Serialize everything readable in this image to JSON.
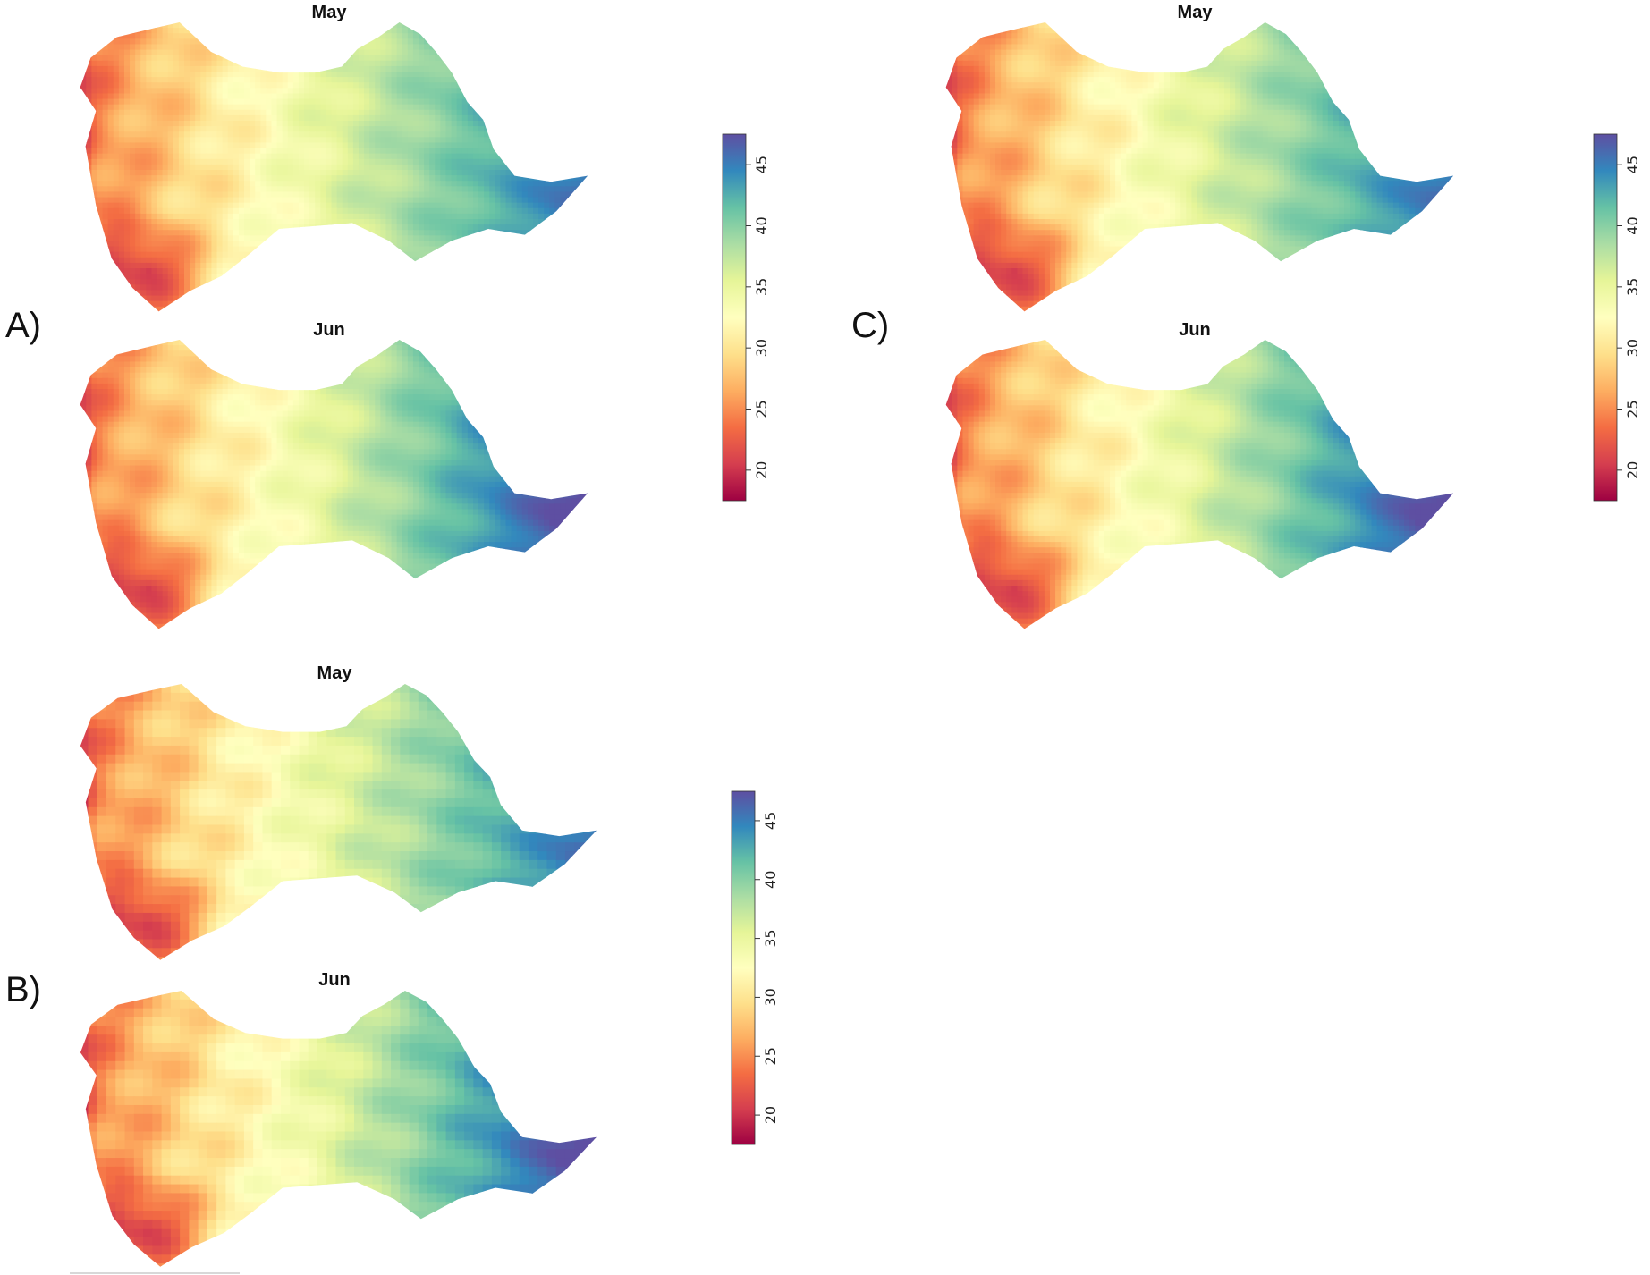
{
  "panels": [
    {
      "letter": "A)",
      "maps": [
        {
          "title": "May",
          "shift": 0.0
        },
        {
          "title": "Jun",
          "shift": 0.09
        }
      ]
    },
    {
      "letter": "B)",
      "maps": [
        {
          "title": "May",
          "shift": 0.0
        },
        {
          "title": "Jun",
          "shift": 0.09
        }
      ]
    },
    {
      "letter": "C)",
      "maps": [
        {
          "title": "May",
          "shift": 0.0
        },
        {
          "title": "Jun",
          "shift": 0.09
        }
      ]
    }
  ],
  "legend": {
    "ticks": [
      "20",
      "25",
      "30",
      "35",
      "40",
      "45"
    ],
    "range": [
      17.5,
      47.5
    ],
    "colors": [
      "#9e0142",
      "#d53e4f",
      "#f46d43",
      "#fdae61",
      "#fee08b",
      "#ffffbf",
      "#e6f598",
      "#abdda4",
      "#66c2a5",
      "#3288bd",
      "#5e4fa2"
    ]
  }
}
